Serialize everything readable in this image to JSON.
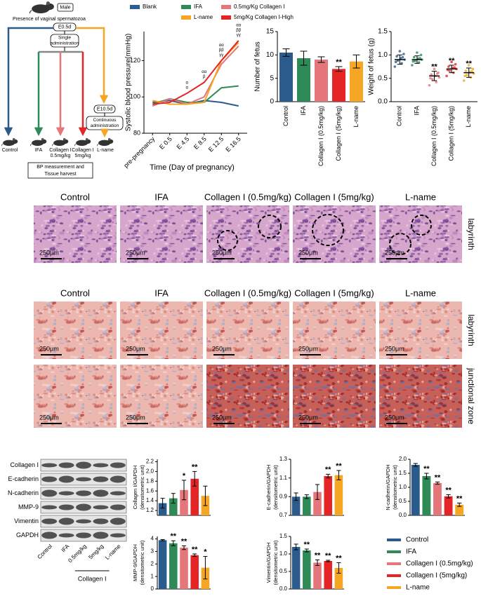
{
  "diagram": {
    "male": "Male",
    "spermatozoa": "Presence of vaginal spermatozoa",
    "e05": "E0.5d",
    "single": [
      "Single",
      "administration"
    ],
    "e105": "E10.5d",
    "continuous": [
      "Continuous",
      "administration"
    ],
    "groups": [
      [
        "Control"
      ],
      [
        "IFA"
      ],
      [
        "Collagen I",
        "0.5mg/kg"
      ],
      [
        "Collagen I",
        "5mg/kg"
      ],
      [
        "L-name"
      ]
    ],
    "harvest": [
      "BP measurement and",
      "Tissue harvest"
    ]
  },
  "group_legend": {
    "names": [
      "Control",
      "IFA",
      "Collagen I (0.5mg/kg)",
      "Collagen I (5mg/kg)",
      "L-name"
    ],
    "colors": [
      "#2a5b8c",
      "#2e8b57",
      "#e5767a",
      "#e52525",
      "#f5a623"
    ]
  },
  "chart_data": [
    {
      "type": "line",
      "y_label": "Systolic blood pressure(mmHg)",
      "x_label": "Time (Day of pregnancy)",
      "categories": [
        "pre-pregnancy",
        "E 0.5",
        "E 4.5",
        "E 8.5",
        "E 12.5",
        "E 16.5"
      ],
      "series": [
        {
          "name": "Blank",
          "color": "#2a5b8c",
          "values": [
            97,
            98,
            96,
            98,
            97,
            95
          ]
        },
        {
          "name": "IFA",
          "color": "#2e8b57",
          "values": [
            96,
            99,
            97,
            97,
            105,
            106
          ]
        },
        {
          "name": "0.5mg/Kg Collagen I",
          "color": "#e5767a",
          "values": [
            95,
            99,
            96,
            100,
            118,
            128
          ]
        },
        {
          "name": "L-name",
          "color": "#f5a623",
          "values": [
            98,
            96,
            96,
            97,
            120,
            130
          ]
        },
        {
          "name": "5mg/Kg Collagen I-High",
          "color": "#e52525",
          "values": [
            96,
            97,
            102,
            108,
            120,
            131
          ]
        }
      ],
      "ylim": [
        80,
        136
      ],
      "yticks": [
        80,
        100,
        120
      ],
      "annotations": [
        null,
        null,
        [
          "α",
          "α"
        ],
        [
          "αα",
          "β"
        ],
        [
          "αα",
          "ββ",
          "γγ"
        ],
        [
          "αα",
          "ββ",
          "γγ"
        ]
      ]
    },
    {
      "type": "bar",
      "y_label": "Number of fetus",
      "categories": [
        "Control",
        "IFA",
        "Collagen I (0.5mg/kg)",
        "Collagen I (5mg/kg)",
        "L-name"
      ],
      "values": [
        10.5,
        9.3,
        9.0,
        7.0,
        8.6
      ],
      "errors": [
        0.8,
        1.5,
        0.6,
        0.5,
        1.4
      ],
      "significance": [
        null,
        null,
        null,
        "**",
        null
      ],
      "ylim": [
        0,
        15
      ],
      "yticks": [
        0,
        5,
        10,
        15
      ]
    },
    {
      "type": "strip",
      "y_label": "Weight of fetus (g)",
      "categories": [
        "Control",
        "IFA",
        "Collagen I (0.5mg/kg)",
        "Collagen I (5mg/kg)",
        "L-name"
      ],
      "values": [
        0.9,
        0.9,
        0.55,
        0.7,
        0.62
      ],
      "errors": [
        0.1,
        0.08,
        0.1,
        0.08,
        0.1
      ],
      "points": [
        [
          0.75,
          0.82,
          0.88,
          0.9,
          0.93,
          0.97,
          1.02,
          1.08,
          0.85,
          0.95
        ],
        [
          0.78,
          0.84,
          0.87,
          0.9,
          0.92,
          0.95,
          1.0,
          1.05,
          0.86,
          0.93
        ],
        [
          0.35,
          0.42,
          0.48,
          0.52,
          0.55,
          0.58,
          0.62,
          0.7,
          0.5,
          0.6
        ],
        [
          0.55,
          0.62,
          0.66,
          0.7,
          0.72,
          0.75,
          0.8,
          0.85,
          0.68,
          0.73
        ],
        [
          0.45,
          0.52,
          0.57,
          0.6,
          0.63,
          0.66,
          0.7,
          0.78,
          0.55,
          0.65
        ]
      ],
      "significance": [
        null,
        null,
        "**",
        "**",
        "**"
      ],
      "ylim": [
        0,
        1.5
      ],
      "yticks": [
        {
          "value": 0,
          "label": "0.0"
        },
        0.5,
        {
          "value": 1,
          "label": "1.0"
        },
        1.5
      ]
    },
    {
      "type": "bar",
      "y_label": "Collagen I/GAPDH",
      "y_label_2": "(densitometric unit)",
      "values": [
        1.35,
        1.45,
        1.62,
        1.85,
        1.5
      ],
      "errors": [
        0.1,
        0.1,
        0.2,
        0.15,
        0.2
      ],
      "significance": [
        null,
        null,
        "*",
        "**",
        null
      ],
      "ylim": [
        1.1,
        2.25
      ],
      "yticks": [
        1.2,
        1.4,
        1.6,
        1.8,
        {
          "value": 2,
          "label": "2.0"
        },
        2.2
      ]
    },
    {
      "type": "bar",
      "y_label": "E-cadherin/GAPDH",
      "y_label_2": "(densitometric unit)",
      "values": [
        0.9,
        0.9,
        0.95,
        1.12,
        1.13
      ],
      "errors": [
        0.04,
        0.02,
        0.08,
        0.02,
        0.05
      ],
      "significance": [
        null,
        null,
        null,
        "**",
        "**"
      ],
      "ylim": [
        0.7,
        1.3
      ],
      "yticks": [
        0.7,
        0.9,
        1.1,
        1.3
      ]
    },
    {
      "type": "bar",
      "y_label": "N-cadherin/GAPDH",
      "y_label_2": "(densitometric unit)",
      "values": [
        1.8,
        1.4,
        1.15,
        0.68,
        0.38
      ],
      "errors": [
        0.05,
        0.1,
        0.04,
        0.06,
        0.06
      ],
      "significance": [
        null,
        "**",
        "**",
        "**",
        "**"
      ],
      "ylim": [
        0,
        2
      ],
      "yticks": [
        {
          "value": 0,
          "label": "0.0"
        },
        0.5,
        {
          "value": 1,
          "label": "1.0"
        },
        1.5,
        {
          "value": 2,
          "label": "2.0"
        }
      ]
    },
    {
      "type": "bar",
      "y_label": "MMP-9/GAPDH",
      "y_label_2": "(densitometric unit)",
      "values": [
        3.9,
        3.65,
        3.3,
        2.7,
        1.7
      ],
      "errors": [
        0.05,
        0.2,
        0.15,
        0.1,
        0.9
      ],
      "significance": [
        null,
        "**",
        "**",
        "**",
        "*"
      ],
      "ylim": [
        0,
        4.2
      ],
      "yticks": [
        0,
        1,
        2,
        3,
        4
      ]
    },
    {
      "type": "bar",
      "y_label": "Vimentin/GAPDH",
      "y_label_2": "(densitometric unit)",
      "values": [
        1.2,
        1.1,
        0.75,
        0.8,
        0.6
      ],
      "errors": [
        0.08,
        0.04,
        0.08,
        0.02,
        0.15
      ],
      "significance": [
        null,
        "**",
        "**",
        "**",
        "**"
      ],
      "ylim": [
        0,
        1.5
      ],
      "yticks": [
        {
          "value": 0,
          "label": "0.0"
        },
        0.5,
        {
          "value": 1,
          "label": "1.0"
        },
        1.5
      ]
    }
  ],
  "histology": {
    "he": {
      "columns": [
        "Control",
        "IFA",
        "Collagen I (0.5mg/kg)",
        "Collagen I (5mg/kg)",
        "L-name"
      ],
      "rows": [
        "labyrinth"
      ]
    },
    "masson": {
      "columns": [
        "Control",
        "IFA",
        "Collagen I (0.5mg/kg)",
        "Collagen I (5mg/kg)",
        "L-name"
      ],
      "rows": [
        "labyrinth",
        "junctional zone"
      ]
    },
    "scale_bar": "250μm"
  },
  "western_blot": {
    "proteins": [
      "Collagen I",
      "E-cadherin",
      "N-cadherin",
      "MMP-9",
      "Vimentin",
      "GAPDH"
    ],
    "lanes": [
      "Control",
      "IFA",
      "0.5mg/kg",
      "5mg/kg",
      "L-name"
    ],
    "group": "Collagen I"
  }
}
